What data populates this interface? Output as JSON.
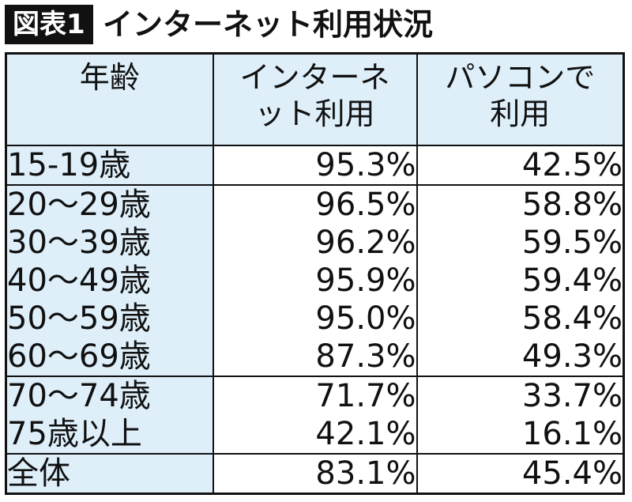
{
  "header": {
    "badge": "図表1",
    "title": "インターネット利用状況"
  },
  "chart_data": {
    "type": "table",
    "columns": [
      "年齢",
      "インターネット利用",
      "パソコンで利用"
    ],
    "rows": [
      {
        "age": "15-19歳",
        "internet": "95.3%",
        "pc": "42.5%"
      },
      {
        "age": "20～29歳",
        "internet": "96.5%",
        "pc": "58.8%"
      },
      {
        "age": "30～39歳",
        "internet": "96.2%",
        "pc": "59.5%"
      },
      {
        "age": "40～49歳",
        "internet": "95.9%",
        "pc": "59.4%"
      },
      {
        "age": "50～59歳",
        "internet": "95.0%",
        "pc": "58.4%"
      },
      {
        "age": "60～69歳",
        "internet": "87.3%",
        "pc": "49.3%"
      },
      {
        "age": "70～74歳",
        "internet": "71.7%",
        "pc": "33.7%"
      },
      {
        "age": "75歳以上",
        "internet": "42.1%",
        "pc": "16.1%"
      },
      {
        "age": "全体",
        "internet": "83.1%",
        "pc": "45.4%"
      }
    ],
    "values_internet": [
      95.3,
      96.5,
      96.2,
      95.9,
      95.0,
      87.3,
      71.7,
      42.1,
      83.1
    ],
    "values_pc": [
      42.5,
      58.8,
      59.5,
      59.4,
      58.4,
      49.3,
      33.7,
      16.1,
      45.4
    ]
  },
  "colors": {
    "header_fill": "#deeffa",
    "border": "#111111",
    "badge_bg": "#111111"
  }
}
